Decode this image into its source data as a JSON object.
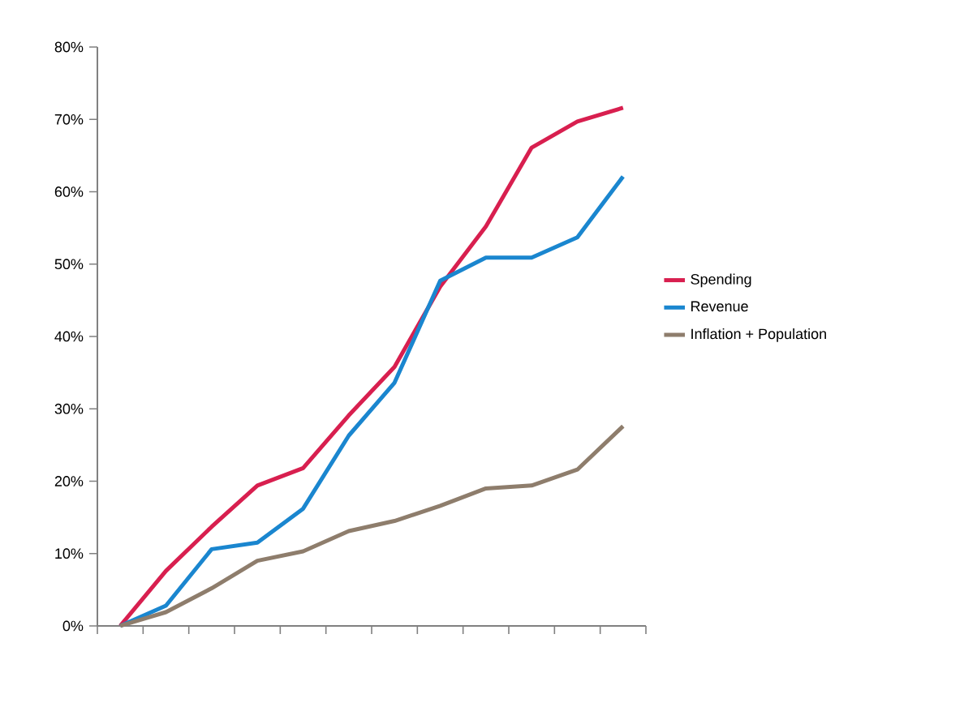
{
  "chart_data": {
    "type": "line",
    "categories": [
      null,
      null,
      null,
      null,
      null,
      null,
      null,
      null,
      null,
      null,
      null,
      null
    ],
    "series": [
      {
        "name": "Spending",
        "color": "#d81f4f",
        "values": [
          0,
          7.6,
          13.7,
          19.4,
          21.8,
          29.1,
          35.8,
          46.9,
          55.2,
          66.1,
          69.7,
          71.6
        ]
      },
      {
        "name": "Revenue",
        "color": "#1a86cf",
        "values": [
          0,
          2.8,
          10.6,
          11.5,
          16.2,
          26.3,
          33.6,
          47.7,
          50.9,
          50.9,
          53.7,
          62.1
        ]
      },
      {
        "name": "Inflation + Population",
        "color": "#8e7d6c",
        "values": [
          0,
          1.9,
          5.2,
          9.0,
          10.3,
          13.1,
          14.5,
          16.6,
          19.0,
          19.4,
          21.6,
          27.6
        ]
      }
    ],
    "ylim": [
      0,
      80
    ],
    "yticks": [
      {
        "value": 0,
        "label": "0%"
      },
      {
        "value": 10,
        "label": "10%"
      },
      {
        "value": 20,
        "label": "20%"
      },
      {
        "value": 30,
        "label": "30%"
      },
      {
        "value": 40,
        "label": "40%"
      },
      {
        "value": 50,
        "label": "50%"
      },
      {
        "value": 60,
        "label": "60%"
      },
      {
        "value": 70,
        "label": "70%"
      },
      {
        "value": 80,
        "label": "80%"
      }
    ],
    "grid": false,
    "legend": "right",
    "marker": "none",
    "line_style": "solid",
    "tick_labels": "y"
  }
}
